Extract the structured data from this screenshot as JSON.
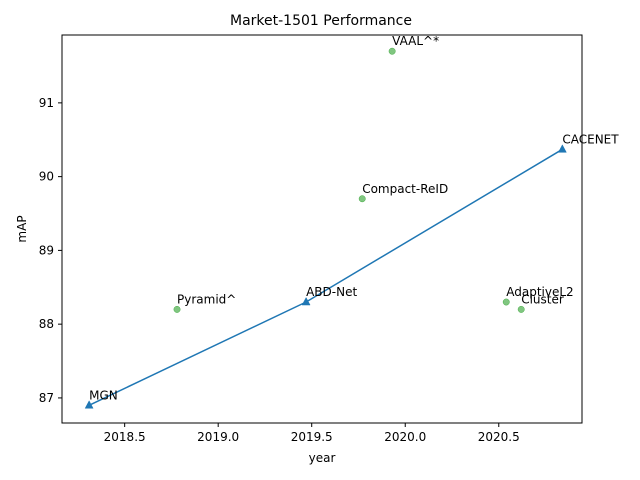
{
  "chart_data": {
    "type": "scatter",
    "title": "Market-1501 Performance",
    "xlabel": "year",
    "ylabel": "mAP",
    "xlim": [
      2018.165,
      2020.945
    ],
    "ylim": [
      86.66,
      91.92
    ],
    "xticks": [
      2018.5,
      2019.0,
      2019.5,
      2020.0,
      2020.5
    ],
    "xtick_labels": [
      "2018.5",
      "2019.0",
      "2019.5",
      "2020.0",
      "2020.5"
    ],
    "yticks": [
      87,
      88,
      89,
      90,
      91
    ],
    "ytick_labels": [
      "87",
      "88",
      "89",
      "90",
      "91"
    ],
    "grid": false,
    "series": [
      {
        "kind": "frontier-line",
        "color": "#1f77b4",
        "marker": "triangle",
        "points": [
          {
            "x": 2018.31,
            "y": 86.9,
            "label": "MGN"
          },
          {
            "x": 2019.47,
            "y": 88.3,
            "label": "ABD-Net"
          },
          {
            "x": 2020.84,
            "y": 90.37,
            "label": "CACENET"
          }
        ]
      },
      {
        "kind": "other-points",
        "color": "#2ca02c",
        "marker": "circle",
        "points": [
          {
            "x": 2018.78,
            "y": 88.2,
            "label": "Pyramid^"
          },
          {
            "x": 2019.77,
            "y": 89.7,
            "label": "Compact-ReID"
          },
          {
            "x": 2019.93,
            "y": 91.7,
            "label": "VAAL^*"
          },
          {
            "x": 2020.54,
            "y": 88.3,
            "label": "AdaptiveL2"
          },
          {
            "x": 2020.62,
            "y": 88.2,
            "label": "Cluster"
          }
        ]
      }
    ]
  }
}
